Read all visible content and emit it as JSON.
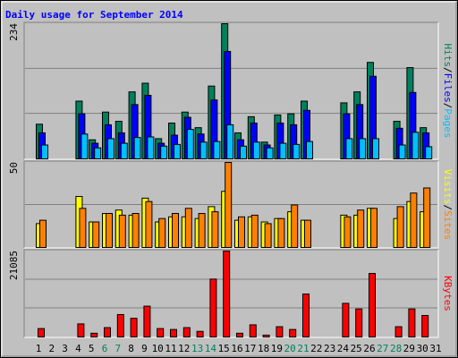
{
  "title": "Daily usage for September 2014",
  "title_color": "#0000ff",
  "categories": [
    "1",
    "2",
    "3",
    "4",
    "5",
    "6",
    "7",
    "8",
    "9",
    "10",
    "11",
    "12",
    "13",
    "14",
    "15",
    "16",
    "17",
    "18",
    "19",
    "20",
    "21",
    "22",
    "23",
    "24",
    "25",
    "26",
    "27",
    "28",
    "29",
    "30",
    "31"
  ],
  "category_colors": [
    "#000000",
    "#000000",
    "#000000",
    "#000000",
    "#000000",
    "#00805c",
    "#00805c",
    "#000000",
    "#000000",
    "#000000",
    "#000000",
    "#000000",
    "#00805c",
    "#00805c",
    "#000000",
    "#000000",
    "#000000",
    "#000000",
    "#000000",
    "#00805c",
    "#00805c",
    "#000000",
    "#000000",
    "#000000",
    "#000000",
    "#000000",
    "#00805c",
    "#00805c",
    "#000000",
    "#000000",
    "#000000"
  ],
  "legend_separator": "/",
  "chart_data": [
    {
      "type": "bar",
      "ylim": [
        0,
        234
      ],
      "yticks": [
        234
      ],
      "grid": [
        78,
        156
      ],
      "series": [
        {
          "name": "Hits",
          "color": "#00805c",
          "values": [
            60,
            0,
            0,
            100,
            33,
            81,
            65,
            116,
            131,
            35,
            62,
            81,
            54,
            126,
            234,
            45,
            73,
            29,
            76,
            78,
            100,
            0,
            0,
            97,
            116,
            167,
            0,
            65,
            158,
            54,
            0
          ]
        },
        {
          "name": "Files",
          "color": "#0000ff",
          "values": [
            45,
            0,
            0,
            78,
            27,
            59,
            45,
            94,
            110,
            27,
            41,
            72,
            43,
            102,
            186,
            33,
            62,
            24,
            62,
            59,
            84,
            0,
            0,
            78,
            94,
            143,
            0,
            53,
            115,
            45,
            0
          ]
        },
        {
          "name": "Pages",
          "color": "#00c0ff",
          "values": [
            24,
            0,
            0,
            43,
            19,
            35,
            27,
            37,
            38,
            22,
            25,
            51,
            29,
            30,
            59,
            22,
            29,
            19,
            27,
            25,
            30,
            0,
            0,
            35,
            35,
            35,
            0,
            24,
            46,
            21,
            0
          ]
        }
      ]
    },
    {
      "type": "bar",
      "ylim": [
        0,
        50
      ],
      "yticks": [
        50
      ],
      "grid": [
        25
      ],
      "series": [
        {
          "name": "Visits",
          "color": "#ffff00",
          "values": [
            14,
            0,
            0,
            30,
            15,
            20,
            22,
            19,
            29,
            15,
            18,
            18,
            17,
            24,
            33,
            16,
            18,
            15,
            17,
            21,
            16,
            0,
            0,
            19,
            19,
            23,
            0,
            17,
            27,
            21,
            0
          ]
        },
        {
          "name": "Sites",
          "color": "#ff8000",
          "values": [
            16,
            0,
            0,
            23,
            15,
            20,
            19,
            20,
            27,
            17,
            20,
            23,
            20,
            21,
            50,
            18,
            19,
            14,
            17,
            25,
            16,
            0,
            0,
            18,
            22,
            23,
            0,
            24,
            32,
            35,
            0
          ]
        }
      ]
    },
    {
      "type": "bar",
      "ylim": [
        0,
        21085
      ],
      "yticks": [
        21085
      ],
      "grid": [
        7028,
        14057
      ],
      "series": [
        {
          "name": "KBytes",
          "color": "#ff0000",
          "values": [
            2063,
            0,
            0,
            3209,
            917,
            2292,
            5501,
            4584,
            7563,
            2063,
            1834,
            2292,
            1375,
            14210,
            21085,
            917,
            2980,
            458,
            2521,
            1834,
            10543,
            0,
            0,
            8251,
            6876,
            15586,
            0,
            2521,
            6876,
            5272,
            0
          ]
        }
      ]
    }
  ]
}
